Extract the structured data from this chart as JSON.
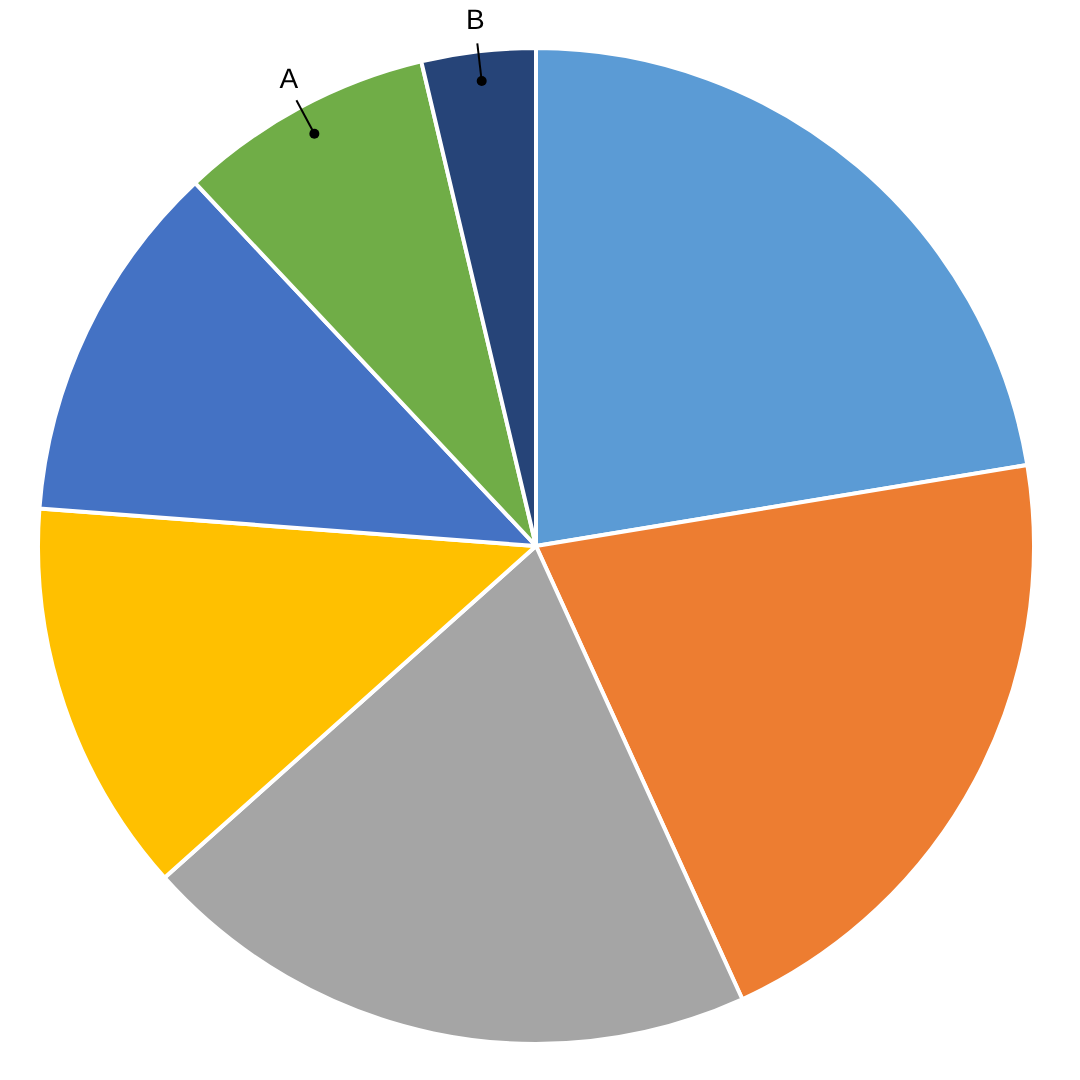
{
  "chart_data": {
    "type": "pie",
    "categories": [
      null,
      null,
      null,
      null,
      null,
      "A",
      "B"
    ],
    "values": [
      22.4,
      20.8,
      20.2,
      12.8,
      11.8,
      8.3,
      3.7
    ],
    "colors": [
      "#5b9bd5",
      "#ed7d31",
      "#a5a5a5",
      "#ffc000",
      "#4472c4",
      "#70ad47",
      "#264478"
    ],
    "legend": false
  }
}
